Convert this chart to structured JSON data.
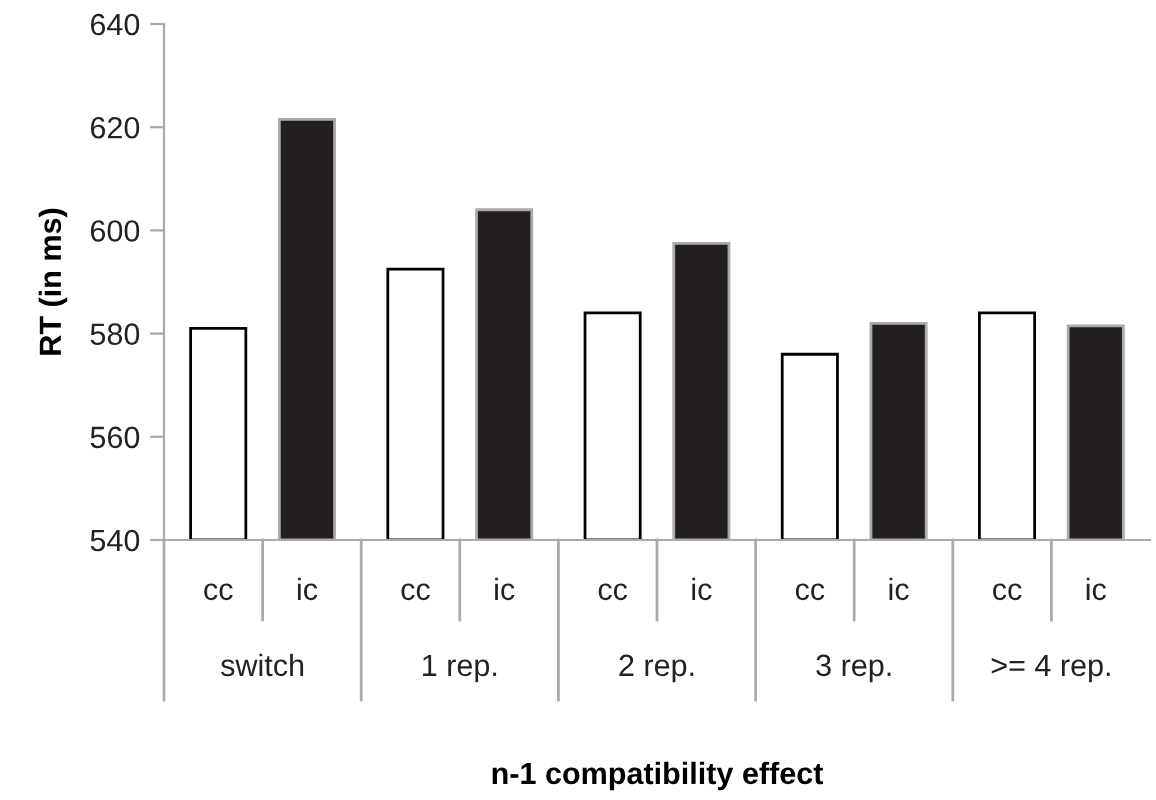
{
  "chart_data": {
    "type": "bar",
    "ylabel": "RT (in ms)",
    "xlabel": "n-1 compatibility effect",
    "categories": [
      "switch",
      "1 rep.",
      "2 rep.",
      "3 rep.",
      ">= 4 rep."
    ],
    "series": [
      {
        "name": "cc",
        "color": "#ffffff",
        "values": [
          581,
          592.5,
          584,
          576,
          584
        ]
      },
      {
        "name": "ic",
        "color": "#231f20",
        "values": [
          621.5,
          604,
          597.5,
          582,
          581.5
        ]
      }
    ],
    "ylim": [
      540,
      640
    ],
    "yticks": [
      540,
      560,
      580,
      600,
      620,
      640
    ],
    "grid": false,
    "legend": false
  }
}
